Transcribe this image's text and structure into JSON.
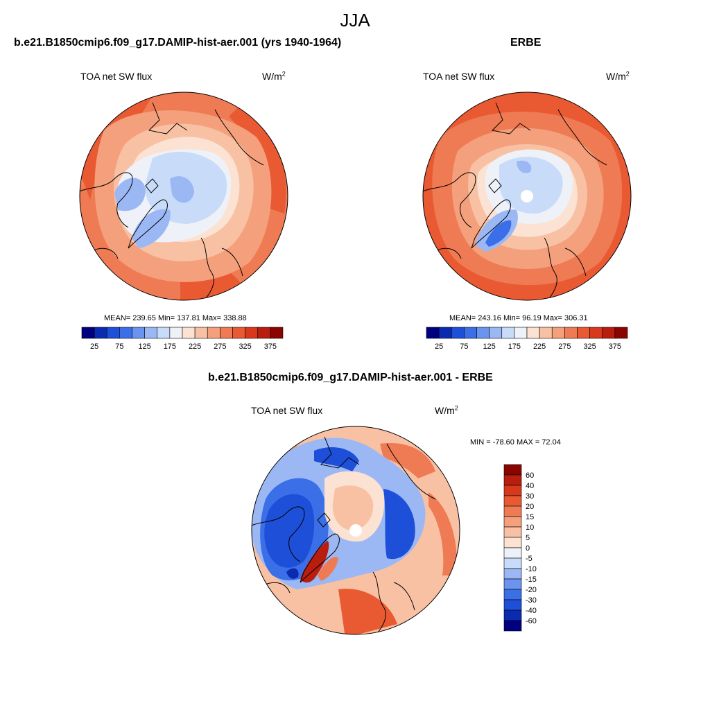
{
  "season_title": "JJA",
  "model_label": "b.e21.B1850cmip6.f09_g17.DAMIP-hist-aer.001",
  "panels": {
    "model": {
      "title": "b.e21.B1850cmip6.f09_g17.DAMIP-hist-aer.001 (yrs 1940-1964)",
      "variable": "TOA net SW flux",
      "units_base": "W/m",
      "units_exp": "2",
      "stats": "MEAN= 239.65  Min= 137.81  Max= 338.88",
      "mean": 239.65,
      "min": 137.81,
      "max": 338.88
    },
    "obs": {
      "title": "ERBE",
      "variable": "TOA net SW flux",
      "units_base": "W/m",
      "units_exp": "2",
      "stats": "MEAN= 243.16  Min=  96.19  Max= 306.31",
      "mean": 243.16,
      "min": 96.19,
      "max": 306.31
    },
    "diff": {
      "title": "b.e21.B1850cmip6.f09_g17.DAMIP-hist-aer.001 - ERBE",
      "variable": "TOA net SW flux",
      "units_base": "W/m",
      "units_exp": "2",
      "stats": "MIN = -78.60 MAX =  72.04",
      "min": -78.6,
      "max": 72.04
    }
  },
  "colorbar_abs": {
    "colors": [
      "#000080",
      "#0a2bb0",
      "#1e4fd8",
      "#3b6fe8",
      "#6b93f0",
      "#9bb8f5",
      "#c8dcf9",
      "#eef2f8",
      "#fbe2d2",
      "#f8c1a3",
      "#f4a07c",
      "#ef7b55",
      "#e95a33",
      "#d8391c",
      "#b81d0e",
      "#8a0500"
    ],
    "tick_labels": [
      "25",
      "75",
      "125",
      "175",
      "225",
      "275",
      "325",
      "375"
    ]
  },
  "colorbar_diff": {
    "colors": [
      "#8a0500",
      "#b81d0e",
      "#d8391c",
      "#e95a33",
      "#ef7b55",
      "#f4a07c",
      "#f8c1a3",
      "#fbe2d2",
      "#eef2f8",
      "#c8dcf9",
      "#9bb8f5",
      "#6b93f0",
      "#3b6fe8",
      "#1e4fd8",
      "#0a2bb0",
      "#000080"
    ],
    "tick_labels": [
      "60",
      "40",
      "30",
      "20",
      "15",
      "10",
      "5",
      "0",
      "-5",
      "-10",
      "-15",
      "-20",
      "-30",
      "-40",
      "-60"
    ]
  },
  "map_colors": {
    "red_dark": "#e95a33",
    "red_mid": "#ef7b55",
    "red_light": "#f4a07c",
    "peach": "#f8c1a3",
    "cream": "#fbe2d2",
    "white_blue": "#eef2f8",
    "pale_blue": "#c8dcf9",
    "light_blue": "#9bb8f5",
    "mid_blue": "#6b93f0",
    "blue": "#3b6fe8",
    "deep_blue": "#1e4fd8",
    "navy": "#0a2bb0",
    "dark_red": "#b81d0e"
  }
}
